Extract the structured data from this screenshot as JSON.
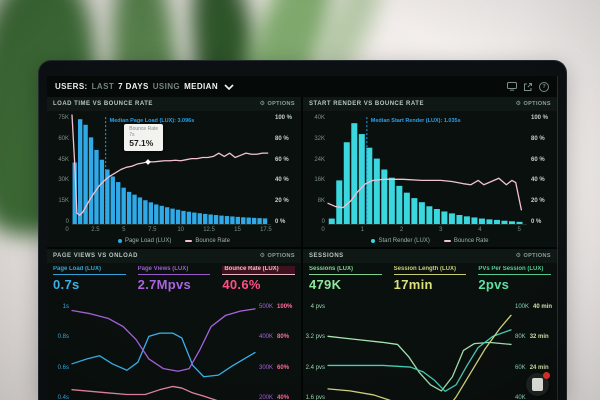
{
  "colors": {
    "blue": "#2FA9E8",
    "cyan": "#3BD7DF",
    "pink_line": "#F2C2CF",
    "pink": "#FF4F86",
    "purple": "#A964DD",
    "green": "#8BE89C",
    "yellow": "#DCE07C",
    "teal": "#46D4B8"
  },
  "topbar": {
    "users": "USERS:",
    "last": "LAST",
    "days": "7 DAYS",
    "using": "USING",
    "median": "MEDIAN",
    "help_glyph": "?"
  },
  "labels": {
    "options": "OPTIONS"
  },
  "icons": {
    "gear": "⚙"
  },
  "panels": {
    "load_time": {
      "title": "LOAD TIME VS BOUNCE RATE"
    },
    "start_render": {
      "title": "START RENDER VS BOUNCE RATE"
    },
    "page_views": {
      "title": "PAGE VIEWS VS ONLOAD",
      "metrics": [
        {
          "label": "Page Load (LUX)",
          "value": "0.7s",
          "color": "#3BB5F2"
        },
        {
          "label": "Page Views (LUX)",
          "value": "2.7Mpvs",
          "color": "#A964DD"
        },
        {
          "label": "Bounce Rate (LUX)",
          "value": "40.6%",
          "color": "#FF4F86"
        }
      ]
    },
    "sessions": {
      "title": "SESSIONS",
      "metrics": [
        {
          "label": "Sessions (LUX)",
          "value": "479K",
          "color": "#8BE89C"
        },
        {
          "label": "Session Length (LUX)",
          "value": "17min",
          "color": "#DCE07C"
        },
        {
          "label": "PVs Per Session (LUX)",
          "value": "2pvs",
          "color": "#5FE0A0"
        }
      ]
    }
  },
  "chart_data": [
    {
      "id": "load_time",
      "type": "bar",
      "title": "LOAD TIME VS BOUNCE RATE",
      "x_max": 18.3,
      "left_ticks": [
        "75K",
        "60K",
        "45K",
        "30K",
        "15K",
        "0"
      ],
      "right_ticks": [
        "100 %",
        "80 %",
        "60 %",
        "40 %",
        "20 %",
        "0 %"
      ],
      "x_ticks": [
        0,
        2.5,
        5,
        7.5,
        10,
        12.5,
        15,
        17.5
      ],
      "bars": {
        "name": "Page Load (LUX)",
        "unit": "K",
        "color": "#2FA9E8",
        "max": 78,
        "bin_width": 0.5,
        "values": [
          44,
          75,
          71,
          62,
          53,
          46,
          39,
          34,
          30,
          26,
          23,
          21,
          19,
          17,
          15.5,
          14,
          13,
          12,
          11,
          10.2,
          9.4,
          8.8,
          8.2,
          7.7,
          7.2,
          6.8,
          6.4,
          6,
          5.7,
          5.4,
          5.1,
          4.8,
          4.6,
          4.4,
          4.2,
          4
        ]
      },
      "series": [
        {
          "name": "Bounce Rate",
          "unit": "%",
          "color": "#F2C2CF",
          "min": 0,
          "max": 100,
          "points": [
            [
              0,
              100
            ],
            [
              0.25,
              55
            ],
            [
              0.45,
              10
            ],
            [
              0.7,
              8
            ],
            [
              1,
              11
            ],
            [
              1.5,
              20
            ],
            [
              2,
              28
            ],
            [
              2.5,
              35
            ],
            [
              3,
              40
            ],
            [
              3.5,
              44
            ],
            [
              4,
              47
            ],
            [
              4.5,
              50
            ],
            [
              5,
              52
            ],
            [
              5.5,
              53
            ],
            [
              6,
              55
            ],
            [
              6.5,
              56
            ],
            [
              7,
              57.1
            ],
            [
              7.5,
              57
            ],
            [
              8,
              57.5
            ],
            [
              8.5,
              58
            ],
            [
              9,
              58
            ],
            [
              9.5,
              58.5
            ],
            [
              10,
              58
            ],
            [
              10.5,
              59
            ],
            [
              11,
              60
            ],
            [
              11.5,
              60
            ],
            [
              12,
              61
            ],
            [
              12.5,
              61
            ],
            [
              13,
              62
            ],
            [
              13.5,
              65
            ],
            [
              14,
              62
            ],
            [
              14.5,
              65
            ],
            [
              15,
              61
            ],
            [
              15.5,
              63
            ],
            [
              16,
              65
            ],
            [
              16.5,
              64
            ],
            [
              17,
              64
            ],
            [
              17.5,
              65
            ],
            [
              18,
              65
            ]
          ]
        }
      ],
      "median": {
        "x": 3.096,
        "label": "Median Page Load (LUX): 3.096s"
      },
      "tooltip": {
        "x": 7,
        "y": 57.1,
        "title": "Bounce Rate",
        "sub": "7s",
        "value": "57.1%"
      },
      "legend": [
        {
          "type": "dot",
          "color": "#2FA9E8",
          "label": "Page Load (LUX)"
        },
        {
          "type": "line",
          "color": "#F2C2CF",
          "label": "Bounce Rate"
        }
      ]
    },
    {
      "id": "start_render",
      "type": "bar",
      "title": "START RENDER VS BOUNCE RATE",
      "x_max": 5.3,
      "left_ticks": [
        "40K",
        "32K",
        "24K",
        "16K",
        "8K",
        "0"
      ],
      "right_ticks": [
        "100 %",
        "80 %",
        "60 %",
        "40 %",
        "20 %",
        "0 %"
      ],
      "x_ticks": [
        0,
        1,
        2,
        3,
        4,
        5
      ],
      "bars": {
        "name": "Start Render (LUX)",
        "unit": "K",
        "color": "#3BD7DF",
        "max": 40,
        "bin_width": 0.2,
        "values": [
          2,
          16,
          30,
          37,
          33,
          28,
          24,
          20,
          17,
          14,
          11.5,
          9.5,
          8,
          6.5,
          5.5,
          4.6,
          3.9,
          3.3,
          2.8,
          2.4,
          2,
          1.7,
          1.5,
          1.2,
          1,
          0.8
        ]
      },
      "series": [
        {
          "name": "Bounce Rate",
          "unit": "%",
          "color": "#F2C2CF",
          "min": 0,
          "max": 100,
          "points": [
            [
              0,
              19
            ],
            [
              0.2,
              16
            ],
            [
              0.4,
              15
            ],
            [
              0.6,
              21
            ],
            [
              0.8,
              30
            ],
            [
              1,
              37
            ],
            [
              1.2,
              40
            ],
            [
              1.5,
              41
            ],
            [
              2,
              41
            ],
            [
              2.5,
              40
            ],
            [
              3,
              40
            ],
            [
              3.3,
              39
            ],
            [
              3.6,
              37
            ],
            [
              3.8,
              36
            ],
            [
              4,
              40
            ],
            [
              4.15,
              36
            ],
            [
              4.35,
              39
            ],
            [
              4.55,
              42
            ],
            [
              4.75,
              36
            ],
            [
              4.9,
              40
            ],
            [
              5,
              38
            ],
            [
              5.15,
              13
            ]
          ]
        }
      ],
      "median": {
        "x": 1.035,
        "label": "Median Start Render (LUX): 1.035s"
      },
      "legend": [
        {
          "type": "dot",
          "color": "#3BD7DF",
          "label": "Start Render (LUX)"
        },
        {
          "type": "line",
          "color": "#F2C2CF",
          "label": "Bounce Rate"
        }
      ]
    },
    {
      "id": "page_views_onload",
      "type": "line",
      "title": "PAGE VIEWS VS ONLOAD",
      "x_max": 100,
      "left_ticks": [
        "1s",
        "0.8s",
        "0.6s",
        "0.4s"
      ],
      "left_color": "#3BB5F2",
      "right_pairs": [
        [
          "500K",
          "100%"
        ],
        [
          "400K",
          "80%"
        ],
        [
          "300K",
          "60%"
        ],
        [
          "200K",
          "40%"
        ]
      ],
      "right_colors": [
        "#A964DD",
        "#FF6E9C"
      ],
      "series": [
        {
          "name": "Page Load (LUX)",
          "unit": "s",
          "color": "#3BB5F2",
          "min": 0.4,
          "max": 1.0,
          "points": [
            [
              0,
              0.63
            ],
            [
              8,
              0.66
            ],
            [
              15,
              0.68
            ],
            [
              22,
              0.63
            ],
            [
              30,
              0.59
            ],
            [
              36,
              0.64
            ],
            [
              42,
              0.8
            ],
            [
              48,
              0.82
            ],
            [
              55,
              0.82
            ],
            [
              60,
              0.79
            ],
            [
              66,
              0.62
            ],
            [
              72,
              0.55
            ],
            [
              80,
              0.56
            ],
            [
              88,
              0.62
            ],
            [
              100,
              0.7
            ]
          ]
        },
        {
          "name": "Page Views (LUX)",
          "unit": "K",
          "color": "#A964DD",
          "min": 200,
          "max": 500,
          "points": [
            [
              0,
              480
            ],
            [
              10,
              470
            ],
            [
              20,
              455
            ],
            [
              28,
              430
            ],
            [
              35,
              390
            ],
            [
              42,
              330
            ],
            [
              50,
              300
            ],
            [
              58,
              292
            ],
            [
              64,
              300
            ],
            [
              70,
              360
            ],
            [
              76,
              430
            ],
            [
              84,
              465
            ],
            [
              92,
              478
            ],
            [
              100,
              485
            ]
          ]
        },
        {
          "name": "Bounce Rate (LUX)",
          "unit": "%",
          "color": "#F08CA8",
          "min": 40,
          "max": 100,
          "points": [
            [
              0,
              47
            ],
            [
              10,
              46
            ],
            [
              20,
              45
            ],
            [
              30,
              44
            ],
            [
              40,
              44
            ],
            [
              48,
              47
            ],
            [
              55,
              49
            ],
            [
              60,
              48
            ],
            [
              66,
              45
            ],
            [
              72,
              43
            ],
            [
              80,
              40
            ],
            [
              88,
              37
            ],
            [
              100,
              34
            ]
          ]
        }
      ]
    },
    {
      "id": "sessions",
      "type": "line",
      "title": "SESSIONS",
      "x_max": 100,
      "left_ticks": [
        "4 pvs",
        "3.2 pvs",
        "2.4 pvs",
        "1.6 pvs"
      ],
      "left_color": "#9FD9B5",
      "right_pairs": [
        [
          "100K",
          "40 min"
        ],
        [
          "80K",
          "32 min"
        ],
        [
          "60K",
          "24 min"
        ],
        [
          "40K",
          ""
        ]
      ],
      "right_colors": [
        "#8FD9C0",
        "#D9E8B0"
      ],
      "series": [
        {
          "name": "PVs Per Session (LUX)",
          "unit": "pvs",
          "color": "#A8E6B0",
          "min": 1.6,
          "max": 4,
          "points": [
            [
              0,
              3.2
            ],
            [
              10,
              3.15
            ],
            [
              20,
              3.1
            ],
            [
              30,
              3.05
            ],
            [
              38,
              3.0
            ],
            [
              44,
              2.7
            ],
            [
              50,
              2.3
            ],
            [
              56,
              2.0
            ],
            [
              62,
              1.85
            ],
            [
              68,
              2.2
            ],
            [
              74,
              2.85
            ],
            [
              80,
              3.02
            ],
            [
              88,
              3.05
            ],
            [
              100,
              3.0
            ]
          ]
        },
        {
          "name": "Sessions (LUX)",
          "unit": "K",
          "color": "#46D4B8",
          "min": 40,
          "max": 100,
          "points": [
            [
              0,
              62
            ],
            [
              30,
              62
            ],
            [
              45,
              61
            ],
            [
              52,
              58
            ],
            [
              58,
              53
            ],
            [
              64,
              46
            ],
            [
              70,
              50
            ],
            [
              76,
              62
            ],
            [
              82,
              73
            ],
            [
              90,
              80
            ],
            [
              100,
              84
            ]
          ]
        },
        {
          "name": "Session Length (LUX)",
          "unit": "min",
          "color": "#D8DC82",
          "min": 16,
          "max": 40,
          "points": [
            [
              0,
              19
            ],
            [
              12,
              18.5
            ],
            [
              25,
              17.5
            ],
            [
              35,
              16
            ],
            [
              45,
              14.2
            ],
            [
              52,
              12.8
            ],
            [
              58,
              11.8
            ],
            [
              64,
              13.5
            ],
            [
              70,
              17
            ],
            [
              78,
              23
            ],
            [
              86,
              29
            ],
            [
              94,
              34
            ],
            [
              100,
              37.2
            ]
          ]
        }
      ]
    }
  ]
}
